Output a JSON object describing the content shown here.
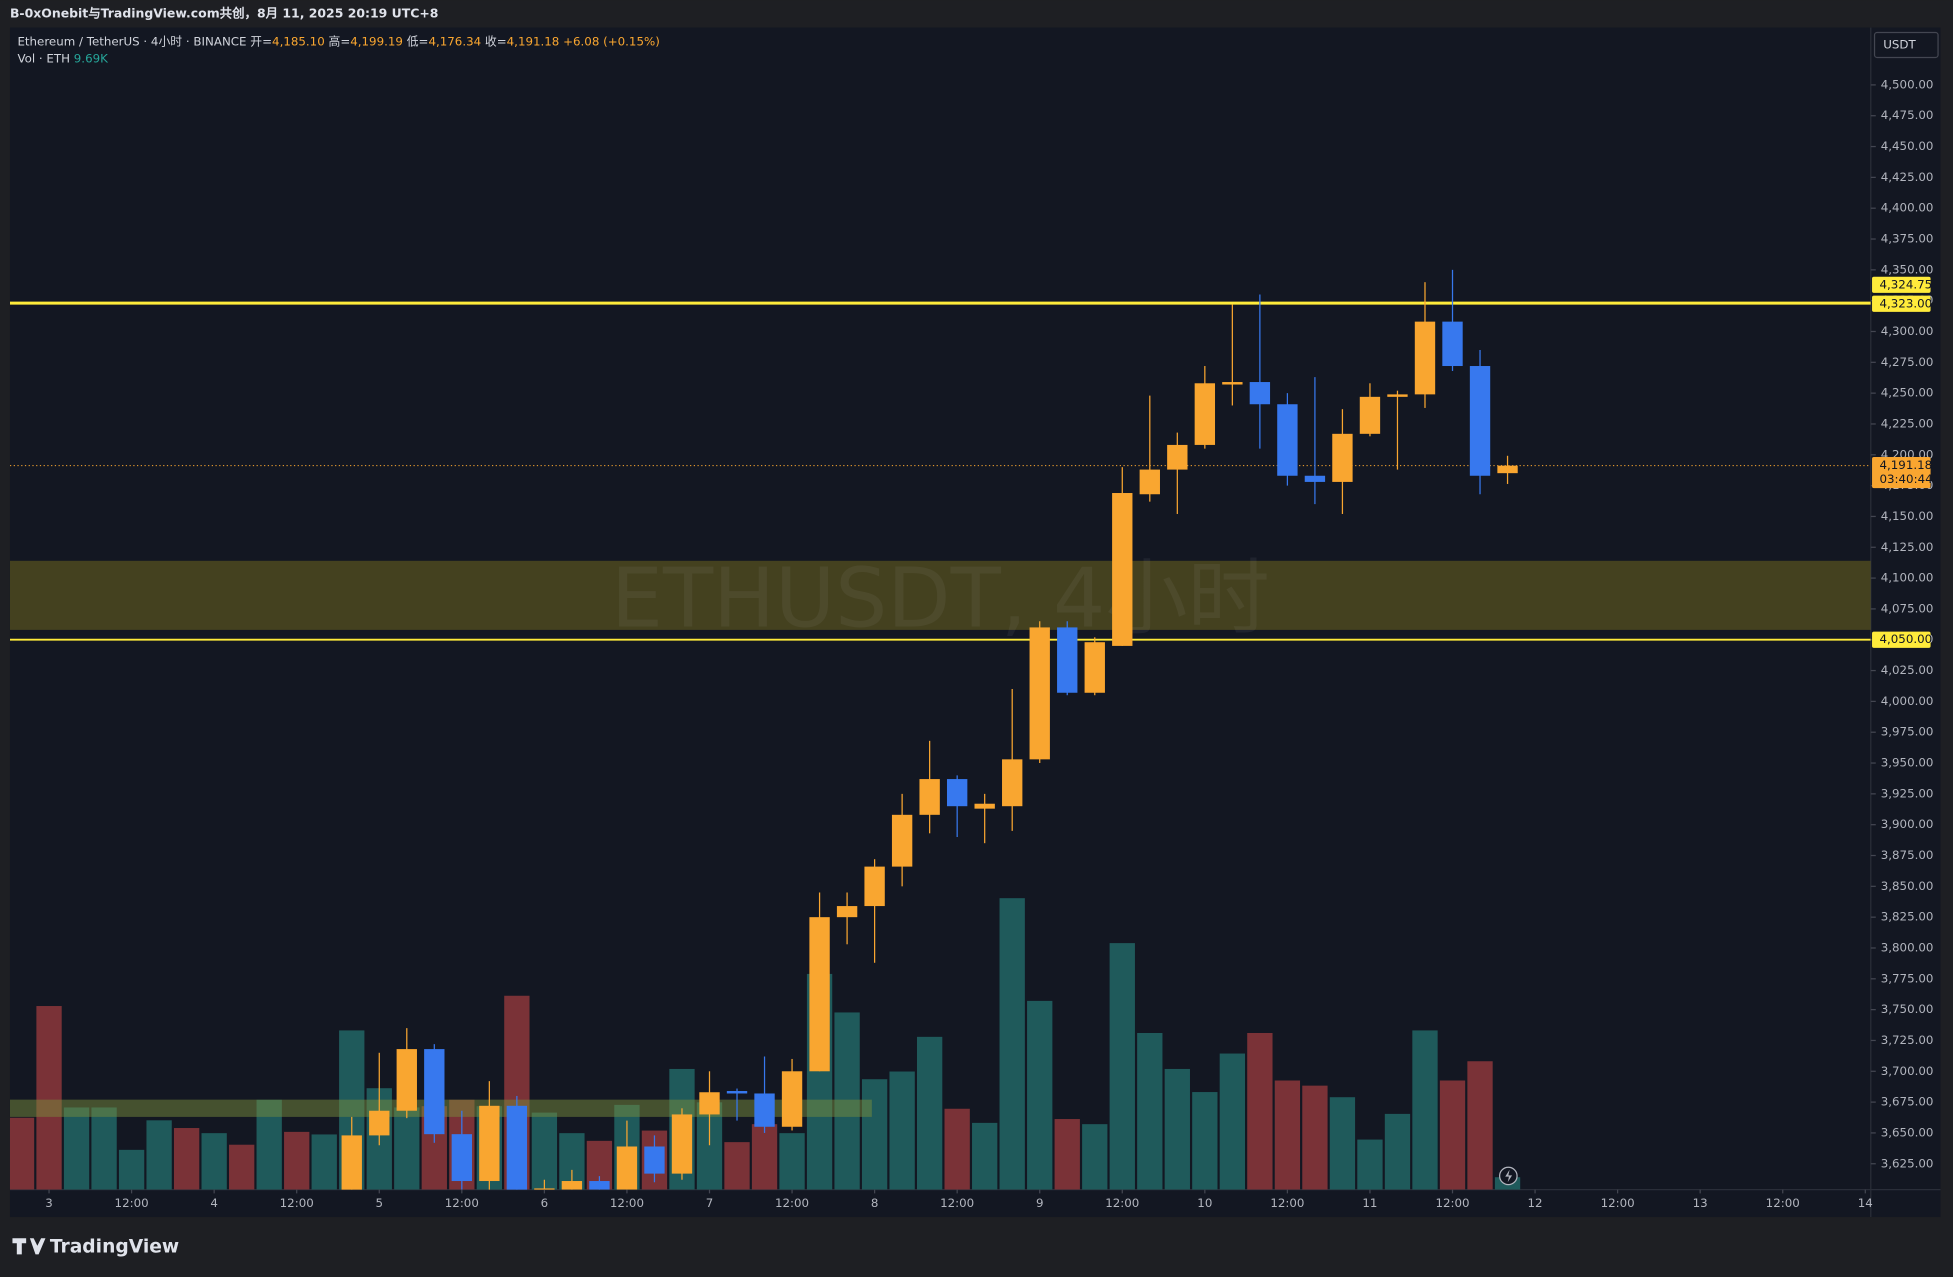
{
  "header": {
    "caption": "B-0xOnebit与TradingView.com共创，8月 11, 2025 20:19 UTC+8"
  },
  "legend": {
    "symbol": "Ethereum / TetherUS · 4小时 · BINANCE",
    "fields": [
      {
        "label": "开=",
        "value": "4,185.10"
      },
      {
        "label": "高=",
        "value": "4,199.19"
      },
      {
        "label": "低=",
        "value": "4,176.34"
      },
      {
        "label": "收=",
        "value": "4,191.18"
      }
    ],
    "change": "+6.08 (+0.15%)",
    "volume_label": "Vol · ETH",
    "volume_value": "9.69K"
  },
  "brand": "TradingView",
  "chart_data": {
    "type": "candlestick",
    "watermark": "ETHUSDT, 4小时",
    "currency": "USDT",
    "up_color": "#f9a630",
    "down_color": "#3778ee",
    "vol_up_color": "#1f5a5b",
    "vol_down_color": "#7a3237",
    "xlim": [
      -0.42,
      67.2
    ],
    "ylim": [
      3604,
      4546.5
    ],
    "vol_max": 905,
    "grid": false,
    "open": [
      null,
      null,
      null,
      null,
      null,
      null,
      null,
      null,
      null,
      null,
      null,
      null,
      3600,
      3648,
      3668,
      3718,
      3649,
      3611,
      3672,
      3600,
      3604,
      3611,
      3604,
      3639,
      3617,
      3665,
      3684,
      3682,
      3655,
      3700,
      3825,
      3834,
      3866,
      3908,
      3937,
      3913,
      3915,
      3953,
      4060,
      4007,
      4045,
      4168,
      4188,
      4208,
      4257,
      4259,
      4241,
      4183,
      4178,
      4217,
      4247,
      4249,
      4308,
      4272,
      4185.1
    ],
    "high": [
      null,
      null,
      null,
      null,
      null,
      null,
      null,
      null,
      null,
      null,
      null,
      null,
      3663,
      3715,
      3735,
      3722,
      3668,
      3692,
      3680,
      3612,
      3620,
      3615,
      3660,
      3648,
      3670,
      3700,
      3686,
      3712,
      3710,
      3845,
      3845,
      3872,
      3925,
      3968,
      3940,
      3925,
      4010,
      4065,
      4065,
      4052,
      4190,
      4248,
      4218,
      4272,
      4322,
      4330,
      4250,
      4263,
      4237,
      4258,
      4252,
      4340,
      4350,
      4285,
      4199.19
    ],
    "low": [
      null,
      null,
      null,
      null,
      null,
      null,
      null,
      null,
      null,
      null,
      null,
      null,
      3595,
      3640,
      3662,
      3642,
      3600,
      3600,
      3595,
      3590,
      3598,
      3598,
      3598,
      3610,
      3612,
      3640,
      3660,
      3650,
      3652,
      3700,
      3803,
      3788,
      3850,
      3893,
      3890,
      3885,
      3895,
      3950,
      4005,
      4005,
      4045,
      4162,
      4152,
      4205,
      4240,
      4205,
      4175,
      4160,
      4152,
      4215,
      4188,
      4238,
      4268,
      4168,
      4176.34
    ],
    "close": [
      null,
      null,
      null,
      null,
      null,
      null,
      null,
      null,
      null,
      null,
      null,
      null,
      3648,
      3668,
      3718,
      3649,
      3611,
      3672,
      3600,
      3605,
      3611,
      3604,
      3639,
      3617,
      3665,
      3683,
      3682,
      3655,
      3700,
      3825,
      3834,
      3866,
      3908,
      3937,
      3915,
      3917,
      3953,
      4060,
      4007,
      4048,
      4169,
      4188,
      4208,
      4258,
      4259,
      4241,
      4183,
      4178,
      4217,
      4247,
      4249,
      4308,
      4272,
      4183,
      4191.18
    ],
    "volume": [
      56,
      143,
      64,
      64,
      31,
      54,
      48,
      44,
      35,
      70,
      45,
      43,
      124,
      79,
      64,
      65,
      70,
      65,
      151,
      60,
      44,
      38,
      66,
      46,
      94,
      68,
      37,
      51,
      44,
      168,
      138,
      86,
      92,
      119,
      63,
      52,
      227,
      147,
      55,
      51,
      192,
      122,
      94,
      76,
      106,
      122,
      85,
      81,
      72,
      39,
      59,
      124,
      85,
      100,
      9.69
    ],
    "vol_up": [
      false,
      false,
      true,
      true,
      true,
      true,
      false,
      true,
      false,
      true,
      false,
      true,
      true,
      true,
      true,
      false,
      false,
      true,
      false,
      true,
      true,
      false,
      true,
      false,
      true,
      true,
      false,
      false,
      true,
      true,
      true,
      true,
      true,
      true,
      false,
      true,
      true,
      true,
      false,
      true,
      true,
      true,
      true,
      true,
      true,
      false,
      false,
      false,
      true,
      true,
      true,
      true,
      false,
      false,
      true
    ],
    "xticks": [
      {
        "value": 1,
        "label": "3"
      },
      {
        "value": 4,
        "label": "12:00"
      },
      {
        "value": 7,
        "label": "4"
      },
      {
        "value": 10,
        "label": "12:00"
      },
      {
        "value": 13,
        "label": "5"
      },
      {
        "value": 16,
        "label": "12:00"
      },
      {
        "value": 19,
        "label": "6"
      },
      {
        "value": 22,
        "label": "12:00"
      },
      {
        "value": 25,
        "label": "7"
      },
      {
        "value": 28,
        "label": "12:00"
      },
      {
        "value": 31,
        "label": "8"
      },
      {
        "value": 34,
        "label": "12:00"
      },
      {
        "value": 37,
        "label": "9"
      },
      {
        "value": 40,
        "label": "12:00"
      },
      {
        "value": 43,
        "label": "10"
      },
      {
        "value": 46,
        "label": "12:00"
      },
      {
        "value": 49,
        "label": "11"
      },
      {
        "value": 52,
        "label": "12:00"
      },
      {
        "value": 55,
        "label": "12"
      },
      {
        "value": 58,
        "label": "12:00"
      },
      {
        "value": 61,
        "label": "13"
      },
      {
        "value": 64,
        "label": "12:00"
      },
      {
        "value": 67,
        "label": "14"
      }
    ],
    "yticks": [
      {
        "value": 3625,
        "label": "3,625.00"
      },
      {
        "value": 3650,
        "label": "3,650.00"
      },
      {
        "value": 3675,
        "label": "3,675.00"
      },
      {
        "value": 3700,
        "label": "3,700.00"
      },
      {
        "value": 3725,
        "label": "3,725.00"
      },
      {
        "value": 3750,
        "label": "3,750.00"
      },
      {
        "value": 3775,
        "label": "3,775.00"
      },
      {
        "value": 3800,
        "label": "3,800.00"
      },
      {
        "value": 3825,
        "label": "3,825.00"
      },
      {
        "value": 3850,
        "label": "3,850.00"
      },
      {
        "value": 3875,
        "label": "3,875.00"
      },
      {
        "value": 3900,
        "label": "3,900.00"
      },
      {
        "value": 3925,
        "label": "3,925.00"
      },
      {
        "value": 3950,
        "label": "3,950.00"
      },
      {
        "value": 3975,
        "label": "3,975.00"
      },
      {
        "value": 4000,
        "label": "4,000.00"
      },
      {
        "value": 4025,
        "label": "4,025.00"
      },
      {
        "value": 4050,
        "label": "4,050.00"
      },
      {
        "value": 4075,
        "label": "4,075.00"
      },
      {
        "value": 4100,
        "label": "4,100.00"
      },
      {
        "value": 4125,
        "label": "4,125.00"
      },
      {
        "value": 4150,
        "label": "4,150.00"
      },
      {
        "value": 4175,
        "label": "4,175.00"
      },
      {
        "value": 4200,
        "label": "4,200.00"
      },
      {
        "value": 4225,
        "label": "4,225.00"
      },
      {
        "value": 4250,
        "label": "4,250.00"
      },
      {
        "value": 4275,
        "label": "4,275.00"
      },
      {
        "value": 4300,
        "label": "4,300.00"
      },
      {
        "value": 4325,
        "label": "4,325.00"
      },
      {
        "value": 4350,
        "label": "4,350.00"
      },
      {
        "value": 4375,
        "label": "4,375.00"
      },
      {
        "value": 4400,
        "label": "4,400.00"
      },
      {
        "value": 4425,
        "label": "4,425.00"
      },
      {
        "value": 4450,
        "label": "4,450.00"
      },
      {
        "value": 4475,
        "label": "4,475.00"
      },
      {
        "value": 4500,
        "label": "4,500.00"
      }
    ],
    "zones": [
      {
        "y": [
          4058,
          4114
        ],
        "x": [
          -0.42,
          67.2
        ],
        "color": "rgba(110,100,30,0.55)"
      },
      {
        "y": [
          3663,
          3677
        ],
        "x": [
          -0.42,
          30.9
        ],
        "color": "rgba(120,140,60,0.5)"
      }
    ],
    "price_lines": [
      {
        "value": 4323,
        "label": "4,323.00",
        "color": "#ffeb3b",
        "width": 2.4
      },
      {
        "value": 4050,
        "label": "4,050.00",
        "color": "#ffeb3b",
        "width": 1.5
      }
    ],
    "alert": {
      "value": 4324.75,
      "label": "4,324.75",
      "color": "#ffeb3b"
    },
    "last_price": {
      "value": 4191.18,
      "label": "4,191.18",
      "countdown": "03:40:44",
      "color": "#f9a630"
    }
  }
}
